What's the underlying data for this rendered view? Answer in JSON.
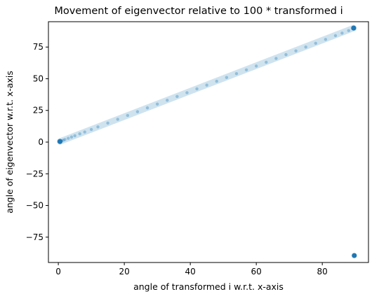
{
  "chart_data": {
    "type": "scatter",
    "title": "Movement of eigenvector relative to 100 * transformed i",
    "xlabel": "angle of transformed i w.r.t. x-axis",
    "ylabel": "angle of eigenvector w.r.t. x-axis",
    "xlim": [
      -3,
      94
    ],
    "ylim": [
      -95,
      95
    ],
    "xticks": [
      0,
      20,
      40,
      60,
      80
    ],
    "yticks": [
      75,
      50,
      25,
      0,
      -25,
      -50,
      -75
    ],
    "tick_labels_x": [
      "0",
      "20",
      "40",
      "60",
      "80"
    ],
    "tick_labels_y": [
      "75",
      "50",
      "25",
      "0",
      "−25",
      "−50",
      "−75"
    ],
    "grid": false,
    "legend": "none",
    "colors": {
      "point": "#1f77b4",
      "point_light": "#a9cde3",
      "axis": "#000000"
    },
    "series": [
      {
        "points": [
          [
            0.5,
            0.5
          ],
          [
            1.0,
            1.0
          ],
          [
            1.5,
            1.5
          ],
          [
            2.0,
            2.0
          ],
          [
            3.0,
            3.0
          ],
          [
            4.0,
            4.0
          ],
          [
            5.0,
            5.0
          ],
          [
            6.5,
            6.5
          ],
          [
            8.0,
            8.0
          ],
          [
            10,
            10
          ],
          [
            12,
            12
          ],
          [
            15,
            15
          ],
          [
            18,
            18
          ],
          [
            21,
            21
          ],
          [
            24,
            24
          ],
          [
            27,
            27
          ],
          [
            30,
            30
          ],
          [
            33,
            33
          ],
          [
            36,
            36
          ],
          [
            39,
            39
          ],
          [
            42,
            42
          ],
          [
            45,
            45
          ],
          [
            48,
            48
          ],
          [
            51,
            51
          ],
          [
            54,
            54
          ],
          [
            57,
            57
          ],
          [
            60,
            60
          ],
          [
            63,
            63
          ],
          [
            66,
            66
          ],
          [
            69,
            69
          ],
          [
            72,
            72
          ],
          [
            75,
            75
          ],
          [
            78,
            78
          ],
          [
            81,
            81
          ],
          [
            84,
            84
          ],
          [
            86,
            86
          ],
          [
            88,
            88
          ],
          [
            89.5,
            90
          ],
          [
            89.7,
            -89.5
          ]
        ]
      }
    ]
  }
}
